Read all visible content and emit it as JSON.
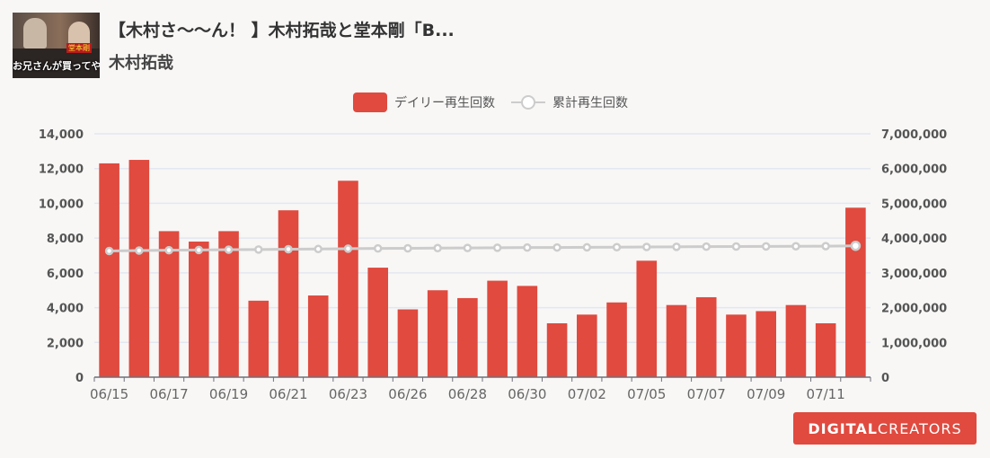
{
  "video": {
    "title": "【木村さ〜〜ん！ 】木村拓哉と堂本剛「B...",
    "channel": "木村拓哉",
    "thumbnail_caption": "お兄さんが買ってやるよ",
    "thumbnail_tag": "堂本剛"
  },
  "legend": {
    "bar_label": "デイリー再生回数",
    "line_label": "累計再生回数"
  },
  "logo": {
    "bold": "DIGITAL",
    "light": " CREATORS"
  },
  "colors": {
    "bar": "#e04a3f",
    "line": "#cccccc",
    "grid": "#e3e7f1"
  },
  "chart_data": {
    "type": "bar",
    "x": [
      "06/15",
      "06/16",
      "06/17",
      "06/18",
      "06/19",
      "06/20",
      "06/21",
      "06/22",
      "06/23",
      "06/24",
      "06/26",
      "06/27",
      "06/28",
      "06/29",
      "06/30",
      "07/01",
      "07/02",
      "07/03",
      "07/05",
      "07/06",
      "07/07",
      "07/08",
      "07/09",
      "07/10",
      "07/11",
      "07/12"
    ],
    "x_tick_labels": [
      "06/15",
      "06/17",
      "06/19",
      "06/21",
      "06/23",
      "06/26",
      "06/28",
      "06/30",
      "07/02",
      "07/05",
      "07/07",
      "07/09",
      "07/11"
    ],
    "series": [
      {
        "name": "デイリー再生回数",
        "type": "bar",
        "axis": "left",
        "values": [
          12300,
          12500,
          8400,
          7800,
          8400,
          4400,
          9600,
          4700,
          11300,
          6300,
          3900,
          5000,
          4550,
          5550,
          5250,
          3100,
          3600,
          4300,
          6700,
          4150,
          4600,
          3600,
          3800,
          4150,
          3100,
          9750
        ]
      },
      {
        "name": "累計再生回数",
        "type": "line",
        "axis": "right",
        "values": [
          3630000,
          3642500,
          3650900,
          3658700,
          3667100,
          3671500,
          3681100,
          3685800,
          3697100,
          3703400,
          3707300,
          3712300,
          3716850,
          3722400,
          3727650,
          3730750,
          3734350,
          3738650,
          3745350,
          3749500,
          3754100,
          3757700,
          3761500,
          3765650,
          3768750,
          3778500
        ]
      }
    ],
    "y_left": {
      "min": 0,
      "max": 14000,
      "ticks": [
        "0",
        "2,000",
        "4,000",
        "6,000",
        "8,000",
        "10,000",
        "12,000",
        "14,000"
      ]
    },
    "y_right": {
      "min": 0,
      "max": 7000000,
      "ticks": [
        "0",
        "1,000,000",
        "2,000,000",
        "3,000,000",
        "4,000,000",
        "5,000,000",
        "6,000,000",
        "7,000,000"
      ]
    },
    "grid": true,
    "legend_position": "top-center"
  }
}
